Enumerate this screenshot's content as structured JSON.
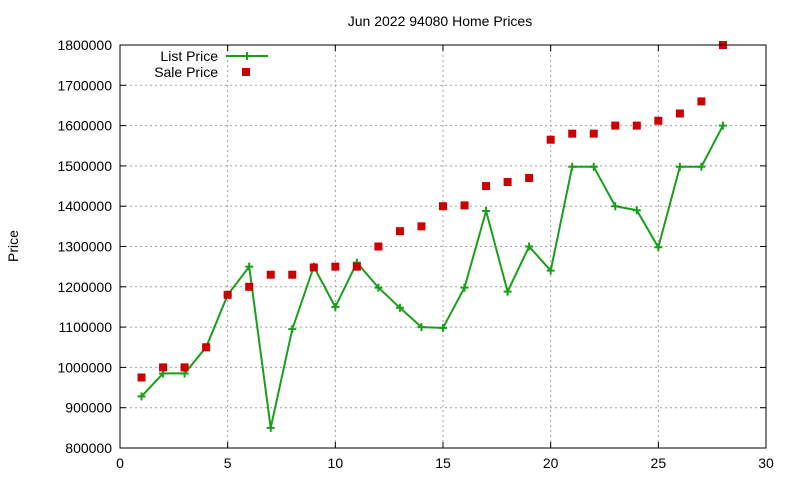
{
  "chart_data": {
    "type": "line",
    "title": "Jun 2022 94080 Home Prices",
    "xlabel": "",
    "ylabel": "Price",
    "xlim": [
      0,
      30
    ],
    "ylim": [
      800000,
      1800000
    ],
    "x_ticks": [
      "0",
      "5",
      "10",
      "15",
      "20",
      "25",
      "30"
    ],
    "y_ticks": [
      "800000",
      "900000",
      "1000000",
      "1100000",
      "1200000",
      "1300000",
      "1400000",
      "1500000",
      "1600000",
      "1700000",
      "1800000"
    ],
    "grid": true,
    "legend_position": "top-left",
    "series": [
      {
        "name": "List Price",
        "style": "line-with-plus-markers",
        "color": "#1a9f1a",
        "x": [
          1,
          2,
          3,
          4,
          5,
          6,
          7,
          8,
          9,
          10,
          11,
          12,
          13,
          14,
          15,
          16,
          17,
          18,
          19,
          20,
          21,
          22,
          23,
          24,
          25,
          26,
          27,
          28
        ],
        "values": [
          928000,
          985000,
          985000,
          1050000,
          1180000,
          1250000,
          850000,
          1095000,
          1250000,
          1150000,
          1260000,
          1198000,
          1148000,
          1100000,
          1098000,
          1198000,
          1388000,
          1188000,
          1300000,
          1240000,
          1498000,
          1498000,
          1400000,
          1390000,
          1298000,
          1498000,
          1498000,
          1600000
        ]
      },
      {
        "name": "Sale Price",
        "style": "square-markers",
        "color": "#cc0000",
        "x": [
          1,
          2,
          3,
          4,
          5,
          6,
          7,
          8,
          9,
          10,
          11,
          12,
          13,
          14,
          15,
          16,
          17,
          18,
          19,
          20,
          21,
          22,
          23,
          24,
          25,
          26,
          27,
          28
        ],
        "values": [
          975000,
          1000000,
          1000000,
          1050000,
          1180000,
          1200000,
          1230000,
          1230000,
          1248000,
          1250000,
          1250000,
          1300000,
          1338000,
          1350000,
          1400000,
          1402000,
          1450000,
          1460000,
          1470000,
          1565000,
          1580000,
          1580000,
          1600000,
          1600000,
          1612000,
          1630000,
          1660000,
          1800000
        ]
      }
    ]
  }
}
